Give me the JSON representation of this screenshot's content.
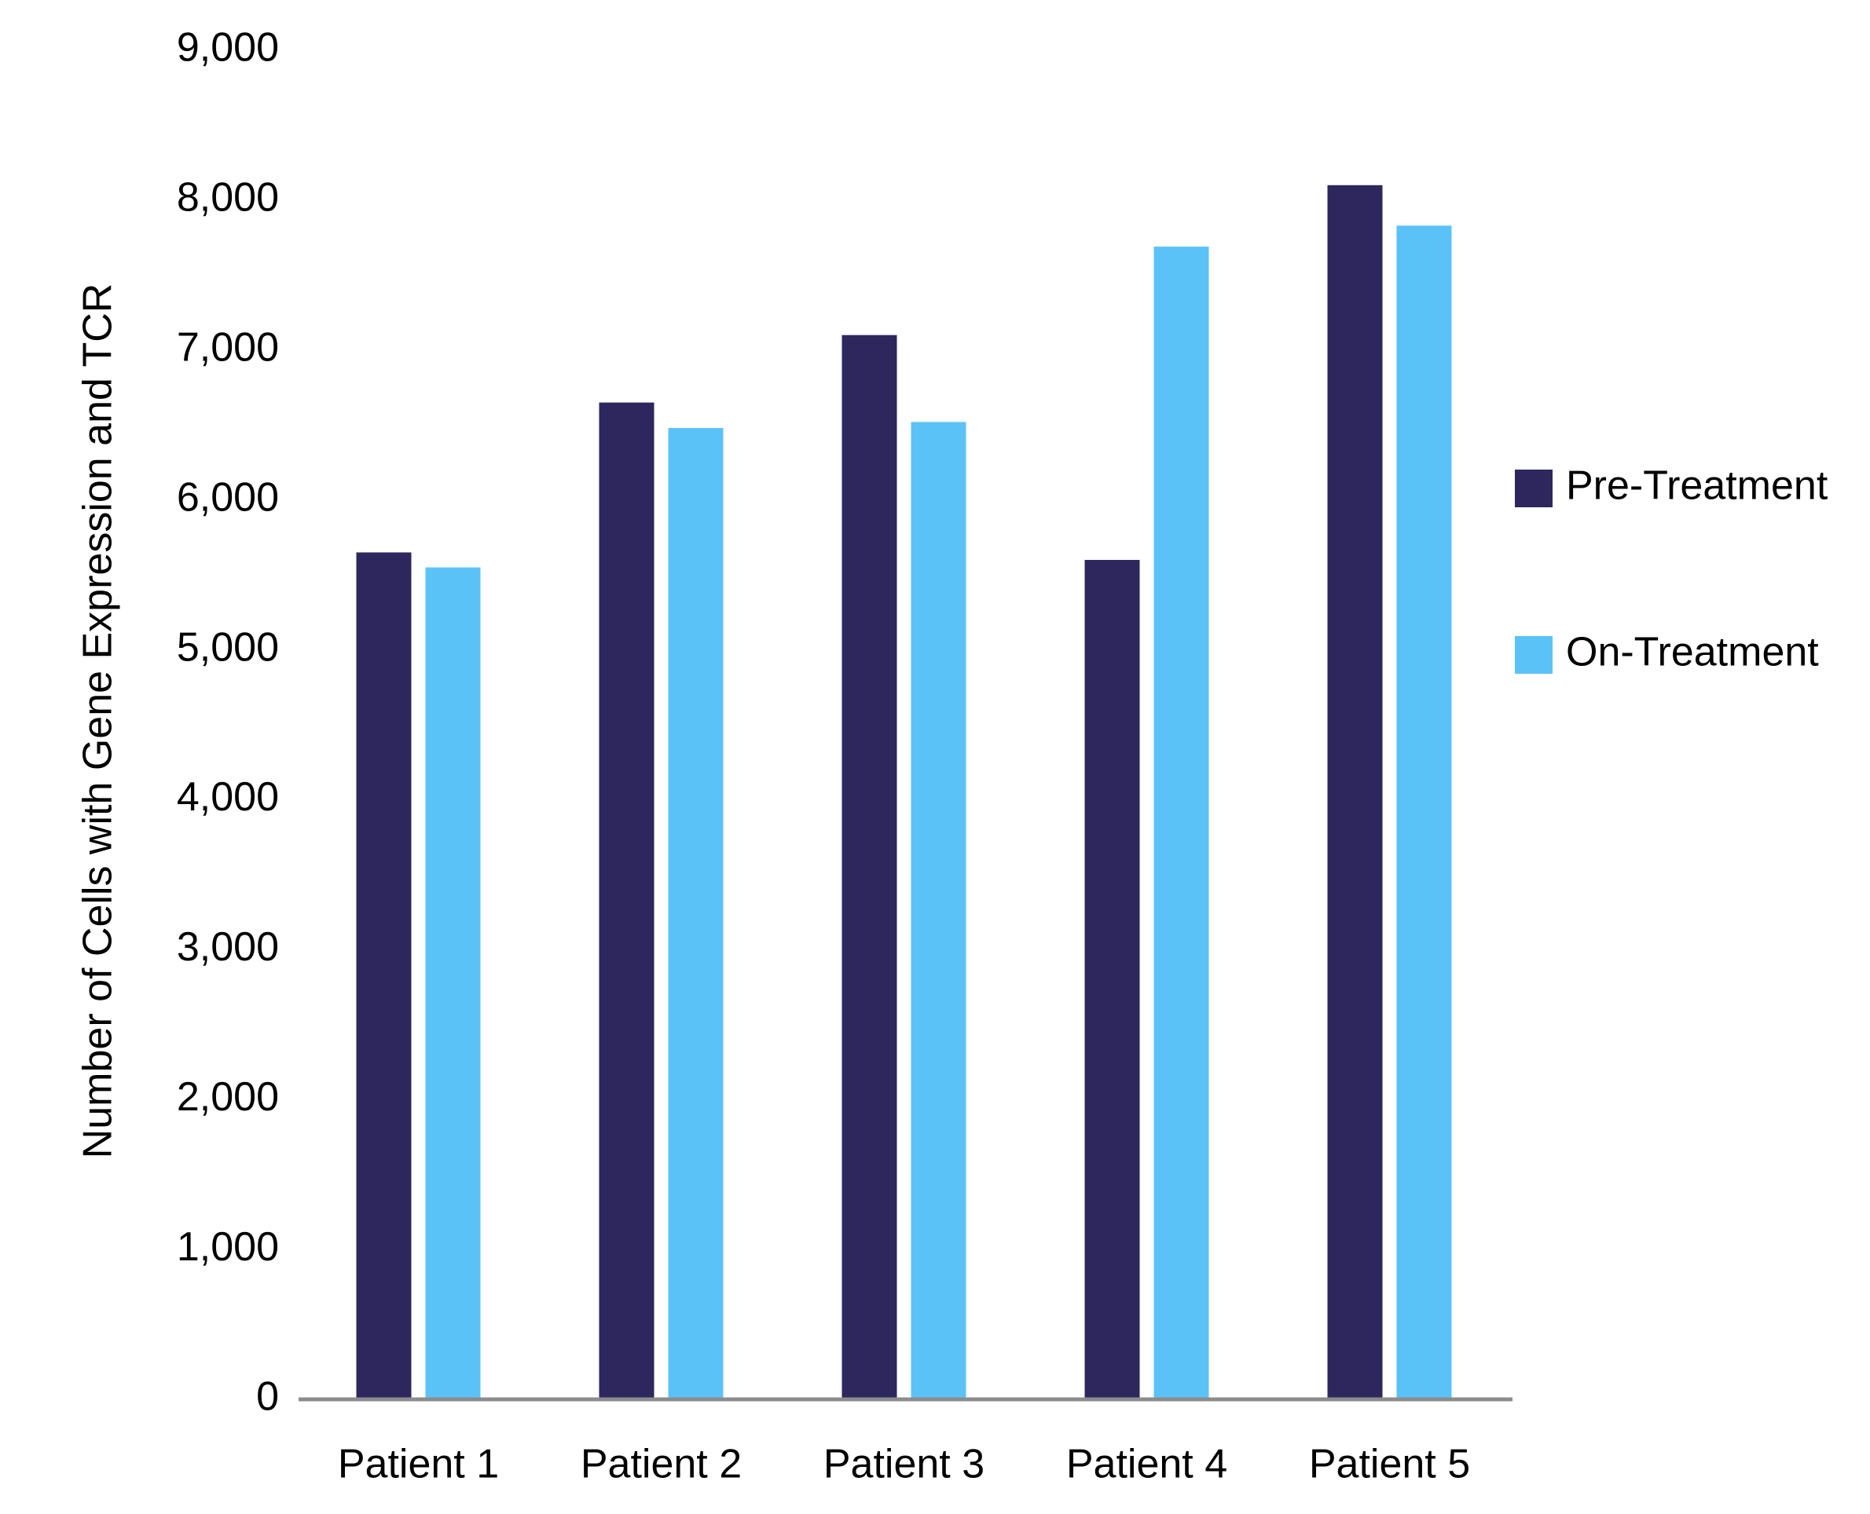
{
  "chart_data": {
    "type": "bar",
    "categories": [
      "Patient 1",
      "Patient 2",
      "Patient 3",
      "Patient 4",
      "Patient 5"
    ],
    "series": [
      {
        "name": "Pre-Treatment",
        "values": [
          5650,
          6650,
          7100,
          5600,
          8100
        ],
        "color": "#2d275e"
      },
      {
        "name": "On-Treatment",
        "values": [
          5550,
          6480,
          6520,
          7690,
          7830
        ],
        "color": "#5bc2f8"
      }
    ],
    "ylabel": "Number of Cells with Gene Expression and TCR",
    "xlabel": "",
    "ylim": [
      0,
      9000
    ],
    "yticks": [
      0,
      1000,
      2000,
      3000,
      4000,
      5000,
      6000,
      7000,
      8000,
      9000
    ],
    "ytick_labels": [
      "0",
      "1,000",
      "2,000",
      "3,000",
      "4,000",
      "5,000",
      "6,000",
      "7,000",
      "8,000",
      "9,000"
    ],
    "grid": false,
    "legend_position": "right"
  }
}
